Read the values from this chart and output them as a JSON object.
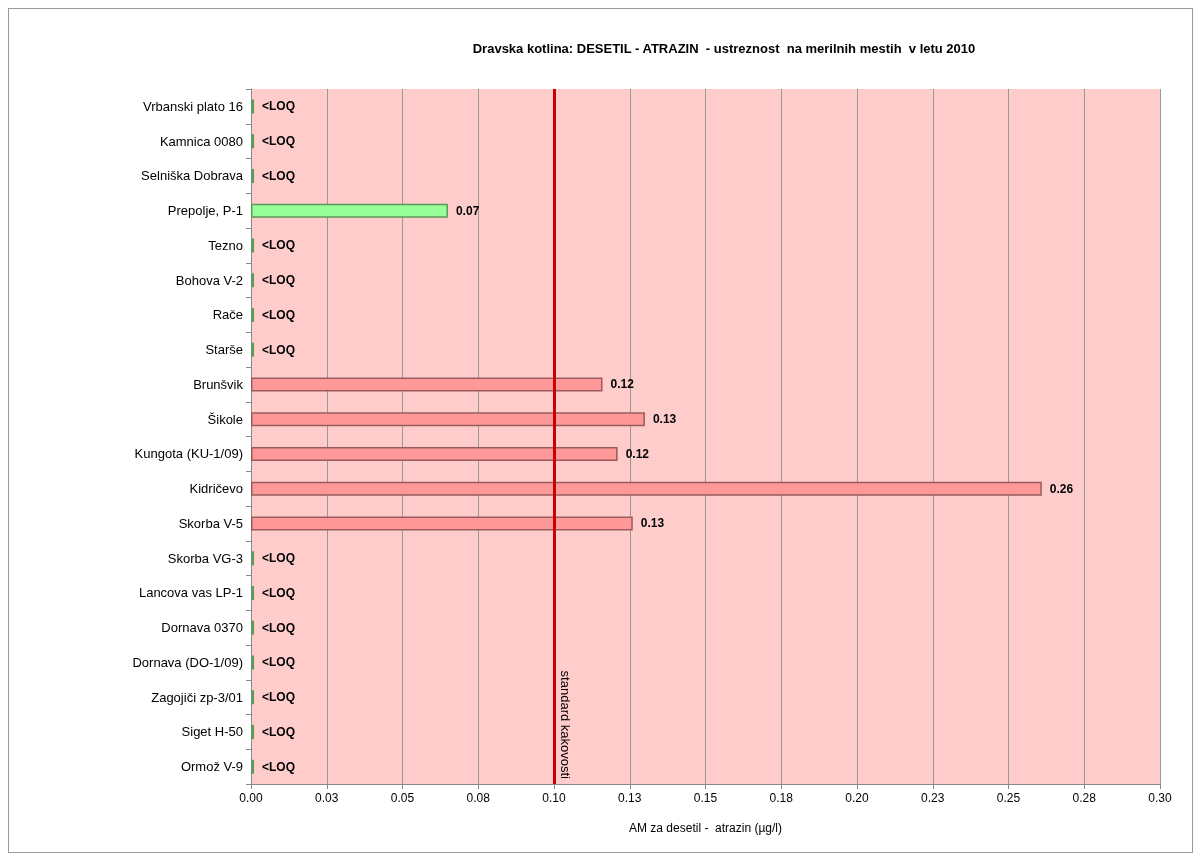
{
  "chart_data": {
    "type": "bar",
    "orientation": "horizontal",
    "title": "Dravska kotlina: DESETIL - ATRAZIN  - ustreznost  na merilnih mestih  v letu 2010",
    "xlabel": "AM za desetil -  atrazin (µg/l)",
    "categories": [
      "Vrbanski plato 16",
      "Kamnica 0080",
      "Selniška Dobrava",
      "Prepolje, P-1",
      "Tezno",
      "Bohova V-2",
      "Rače",
      "Starše",
      "Brunšvik",
      "Šikole",
      "Kungota (KU-1/09)",
      "Kidričevo",
      "Skorba V-5",
      "Skorba VG-3",
      "Lancova vas LP-1",
      "Dornava 0370",
      "Dornava (DO-1/09)",
      "Zagojiči zp-3/01",
      "Siget H-50",
      "Ormož V-9"
    ],
    "values": [
      0.001,
      0.001,
      0.001,
      0.065,
      0.001,
      0.001,
      0.001,
      0.001,
      0.116,
      0.13,
      0.121,
      0.261,
      0.126,
      0.001,
      0.001,
      0.001,
      0.001,
      0.001,
      0.001,
      0.001
    ],
    "value_labels": [
      "<LOQ",
      "<LOQ",
      "<LOQ",
      "0.07",
      "<LOQ",
      "<LOQ",
      "<LOQ",
      "<LOQ",
      "0.12",
      "0.13",
      "0.12",
      "0.26",
      "0.13",
      "<LOQ",
      "<LOQ",
      "<LOQ",
      "<LOQ",
      "<LOQ",
      "<LOQ",
      "<LOQ"
    ],
    "colors": [
      "#99ff99",
      "#99ff99",
      "#99ff99",
      "#99ff99",
      "#99ff99",
      "#99ff99",
      "#99ff99",
      "#99ff99",
      "#ff9999",
      "#ff9999",
      "#ff9999",
      "#ff9999",
      "#ff9999",
      "#99ff99",
      "#99ff99",
      "#99ff99",
      "#99ff99",
      "#99ff99",
      "#99ff99",
      "#99ff99"
    ],
    "xlim": [
      0,
      0.3
    ],
    "xticks": [
      {
        "value": 0,
        "label": "0.00"
      },
      {
        "value": 0.025,
        "label": "0.03"
      },
      {
        "value": 0.05,
        "label": "0.05"
      },
      {
        "value": 0.075,
        "label": "0.08"
      },
      {
        "value": 0.1,
        "label": "0.10"
      },
      {
        "value": 0.125,
        "label": "0.13"
      },
      {
        "value": 0.15,
        "label": "0.15"
      },
      {
        "value": 0.175,
        "label": "0.18"
      },
      {
        "value": 0.2,
        "label": "0.20"
      },
      {
        "value": 0.225,
        "label": "0.23"
      },
      {
        "value": 0.25,
        "label": "0.25"
      },
      {
        "value": 0.275,
        "label": "0.28"
      },
      {
        "value": 0.3,
        "label": "0.30"
      }
    ],
    "grid": "x",
    "ref_lines": [
      {
        "axis": "x",
        "value": 0.1,
        "label": "standard kakovosti",
        "color": "#cc0000"
      }
    ]
  }
}
